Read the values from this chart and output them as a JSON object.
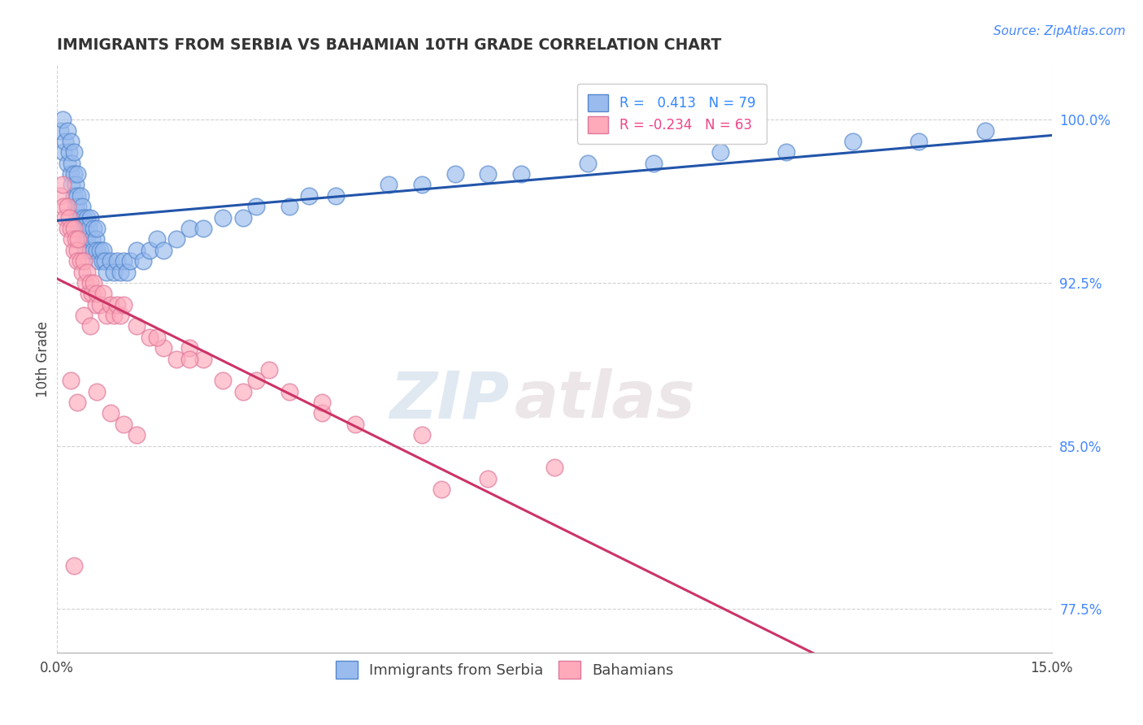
{
  "title": "IMMIGRANTS FROM SERBIA VS BAHAMIAN 10TH GRADE CORRELATION CHART",
  "source_text": "Source: ZipAtlas.com",
  "ylabel": "10th Grade",
  "xlim": [
    0.0,
    15.0
  ],
  "ylim": [
    75.5,
    102.5
  ],
  "y_ticks": [
    77.5,
    85.0,
    92.5,
    100.0
  ],
  "background_color": "#ffffff",
  "grid_color": "#cccccc",
  "serbia_color_edge": "#5588cc",
  "serbia_color_fill": "#99bbee",
  "bahamian_color_edge": "#dd7799",
  "bahamian_color_fill": "#ffaabb",
  "serbia_R": 0.413,
  "serbia_N": 79,
  "bahamian_R": -0.234,
  "bahamian_N": 63,
  "serbia_line_color": "#2255aa",
  "bahamian_line_color": "#cc3366",
  "watermark_zip": "ZIP",
  "watermark_atlas": "atlas",
  "serbia_scatter_x": [
    0.05,
    0.08,
    0.1,
    0.12,
    0.15,
    0.15,
    0.18,
    0.2,
    0.2,
    0.22,
    0.22,
    0.25,
    0.25,
    0.25,
    0.28,
    0.28,
    0.3,
    0.3,
    0.3,
    0.32,
    0.32,
    0.35,
    0.35,
    0.38,
    0.38,
    0.4,
    0.4,
    0.42,
    0.42,
    0.45,
    0.45,
    0.48,
    0.5,
    0.5,
    0.52,
    0.55,
    0.55,
    0.58,
    0.6,
    0.6,
    0.62,
    0.65,
    0.68,
    0.7,
    0.72,
    0.75,
    0.8,
    0.85,
    0.9,
    0.95,
    1.0,
    1.05,
    1.1,
    1.2,
    1.3,
    1.4,
    1.5,
    1.6,
    1.8,
    2.0,
    2.2,
    2.5,
    2.8,
    3.0,
    3.5,
    3.8,
    4.2,
    5.0,
    5.5,
    6.0,
    6.5,
    7.0,
    8.0,
    9.0,
    10.0,
    11.0,
    12.0,
    13.0,
    14.0
  ],
  "serbia_scatter_y": [
    99.5,
    100.0,
    98.5,
    99.0,
    99.5,
    98.0,
    98.5,
    99.0,
    97.5,
    98.0,
    97.0,
    98.5,
    97.5,
    96.5,
    97.0,
    96.0,
    97.5,
    96.5,
    95.5,
    96.0,
    95.0,
    96.5,
    95.5,
    96.0,
    95.0,
    95.5,
    94.5,
    95.0,
    94.0,
    95.5,
    94.5,
    95.0,
    95.5,
    94.0,
    94.5,
    95.0,
    94.0,
    94.5,
    95.0,
    94.0,
    93.5,
    94.0,
    93.5,
    94.0,
    93.5,
    93.0,
    93.5,
    93.0,
    93.5,
    93.0,
    93.5,
    93.0,
    93.5,
    94.0,
    93.5,
    94.0,
    94.5,
    94.0,
    94.5,
    95.0,
    95.0,
    95.5,
    95.5,
    96.0,
    96.0,
    96.5,
    96.5,
    97.0,
    97.0,
    97.5,
    97.5,
    97.5,
    98.0,
    98.0,
    98.5,
    98.5,
    99.0,
    99.0,
    99.5
  ],
  "bahamian_scatter_x": [
    0.05,
    0.08,
    0.1,
    0.12,
    0.15,
    0.15,
    0.18,
    0.2,
    0.22,
    0.25,
    0.25,
    0.28,
    0.3,
    0.3,
    0.32,
    0.35,
    0.38,
    0.4,
    0.42,
    0.45,
    0.48,
    0.5,
    0.52,
    0.55,
    0.58,
    0.6,
    0.65,
    0.7,
    0.75,
    0.8,
    0.85,
    0.9,
    0.95,
    1.0,
    1.2,
    1.4,
    1.6,
    1.8,
    2.0,
    2.2,
    2.5,
    2.8,
    3.0,
    3.5,
    4.0,
    4.5,
    5.5,
    5.8,
    6.5,
    7.5,
    1.5,
    2.0,
    3.2,
    4.0,
    0.6,
    0.8,
    1.0,
    1.2,
    0.4,
    0.5,
    0.2,
    0.3,
    0.25
  ],
  "bahamian_scatter_y": [
    96.5,
    97.0,
    96.0,
    95.5,
    96.0,
    95.0,
    95.5,
    95.0,
    94.5,
    95.0,
    94.0,
    94.5,
    94.0,
    93.5,
    94.5,
    93.5,
    93.0,
    93.5,
    92.5,
    93.0,
    92.0,
    92.5,
    92.0,
    92.5,
    91.5,
    92.0,
    91.5,
    92.0,
    91.0,
    91.5,
    91.0,
    91.5,
    91.0,
    91.5,
    90.5,
    90.0,
    89.5,
    89.0,
    89.5,
    89.0,
    88.0,
    87.5,
    88.0,
    87.5,
    86.5,
    86.0,
    85.5,
    83.0,
    83.5,
    84.0,
    90.0,
    89.0,
    88.5,
    87.0,
    87.5,
    86.5,
    86.0,
    85.5,
    91.0,
    90.5,
    88.0,
    87.0,
    79.5
  ]
}
